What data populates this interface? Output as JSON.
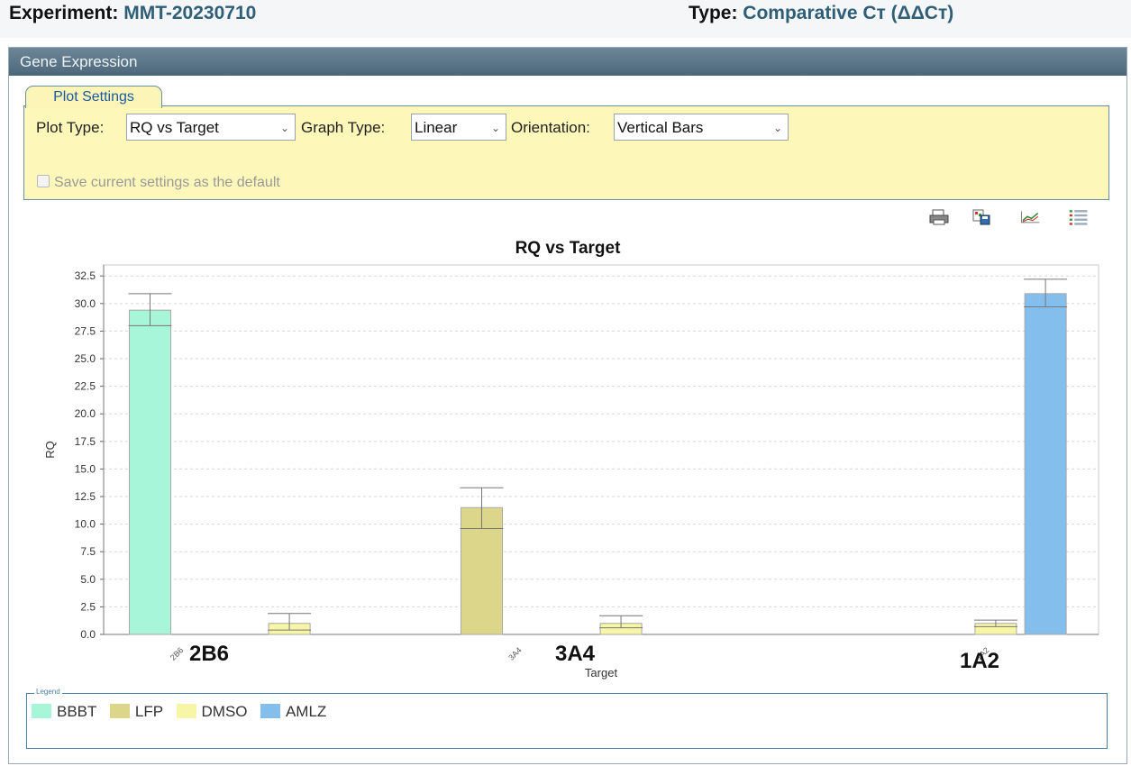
{
  "header": {
    "experiment_label": "Experiment:",
    "experiment_value": "MMT-20230710",
    "type_label": "Type:",
    "type_value": "Comparative Cт (ΔΔCт)"
  },
  "panel": {
    "title": "Gene Expression"
  },
  "plot_settings": {
    "tab_label": "Plot Settings",
    "plot_type_label": "Plot Type:",
    "plot_type_value": "RQ vs Target",
    "graph_type_label": "Graph Type:",
    "graph_type_value": "Linear",
    "orientation_label": "Orientation:",
    "orientation_value": "Vertical Bars",
    "save_default_label": "Save current settings as the default"
  },
  "toolbar": {
    "icons": [
      "print-icon",
      "save-image-icon",
      "line-chart-icon",
      "list-icon"
    ]
  },
  "chart_data": {
    "type": "bar",
    "title": "RQ vs Target",
    "xlabel": "Target",
    "ylabel": "RQ",
    "ylim": [
      0,
      33.5
    ],
    "yticks": [
      "0.0",
      "2.5",
      "5.0",
      "7.5",
      "10.0",
      "12.5",
      "15.0",
      "17.5",
      "20.0",
      "22.5",
      "25.0",
      "27.5",
      "30.0",
      "32.5"
    ],
    "categories": [
      "2B6",
      "3A4",
      "1A2"
    ],
    "grid": true,
    "legend_position": "bottom",
    "series": [
      {
        "name": "BBBT",
        "color": "#a7f6d9",
        "values": [
          29.4,
          null,
          null
        ],
        "err_low": [
          28.0,
          null,
          null
        ],
        "err_high": [
          30.9,
          null,
          null
        ]
      },
      {
        "name": "LFP",
        "color": "#dcd68a",
        "values": [
          null,
          11.5,
          null
        ],
        "err_low": [
          null,
          9.6,
          null
        ],
        "err_high": [
          null,
          13.3,
          null
        ]
      },
      {
        "name": "DMSO",
        "color": "#f7f6a6",
        "values": [
          1.0,
          1.0,
          1.0
        ],
        "err_low": [
          0.4,
          0.6,
          0.7
        ],
        "err_high": [
          1.9,
          1.7,
          1.3
        ]
      },
      {
        "name": "AMLZ",
        "color": "#84beed",
        "values": [
          null,
          null,
          30.9
        ],
        "err_low": [
          null,
          null,
          29.7
        ],
        "err_high": [
          null,
          null,
          32.2
        ]
      }
    ]
  },
  "annotations": [
    "2B6",
    "3A4",
    "1A2"
  ],
  "legend": {
    "title": "Legend",
    "items": [
      {
        "label": "BBBT",
        "color": "#a7f6d9"
      },
      {
        "label": "LFP",
        "color": "#dcd68a"
      },
      {
        "label": "DMSO",
        "color": "#f7f6a6"
      },
      {
        "label": "AMLZ",
        "color": "#84beed"
      }
    ]
  }
}
